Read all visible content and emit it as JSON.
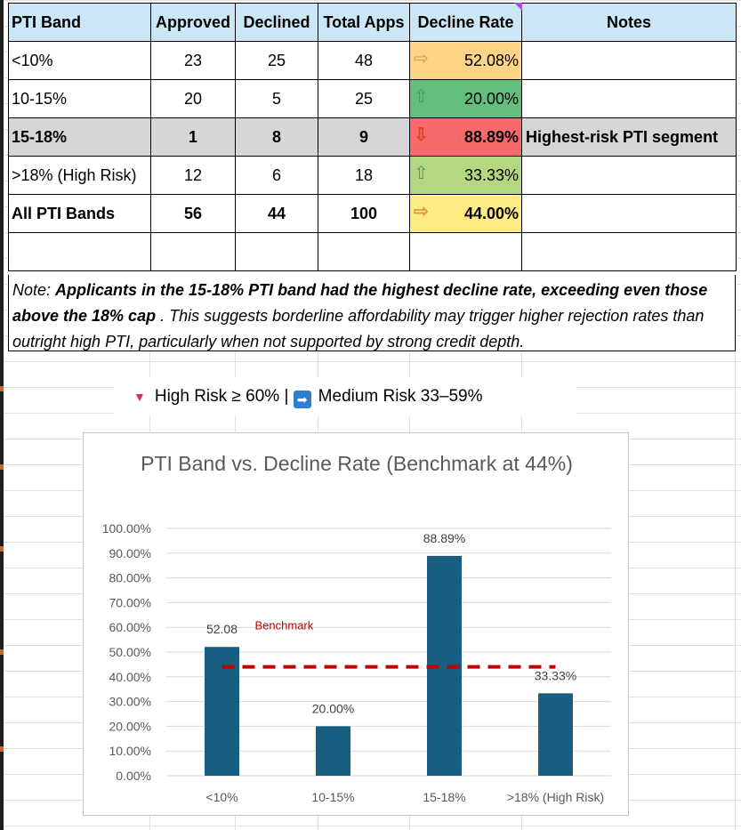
{
  "table": {
    "headers": [
      "PTI Band",
      "Approved",
      "Declined",
      "Total Apps",
      "Decline Rate",
      "Notes"
    ],
    "rows": [
      {
        "band": "<10%",
        "approved": "23",
        "declined": "25",
        "total": "48",
        "rate": "52.08%",
        "arrow": "right",
        "rate_color": "#ffd486",
        "note": ""
      },
      {
        "band": "10-15%",
        "approved": "20",
        "declined": "5",
        "total": "25",
        "rate": "20.00%",
        "arrow": "up",
        "rate_color": "#63be7b",
        "note": ""
      },
      {
        "band": "15-18%",
        "approved": "1",
        "declined": "8",
        "total": "9",
        "rate": "88.89%",
        "arrow": "down",
        "rate_color": "#f8696b",
        "note": "Highest-risk PTI segment"
      },
      {
        "band": ">18% (High Risk)",
        "approved": "12",
        "declined": "6",
        "total": "18",
        "rate": "33.33%",
        "arrow": "up",
        "rate_color": "#b5d77f",
        "note": ""
      },
      {
        "band": "All PTI Bands",
        "approved": "56",
        "declined": "44",
        "total": "100",
        "rate": "44.00%",
        "arrow": "right",
        "rate_color": "#ffeb84",
        "note": ""
      }
    ]
  },
  "note": {
    "prefix": "Note:  ",
    "bold": "Applicants in the 15-18% PTI band had the highest decline rate, exceeding even those above the 18% cap",
    "rest": " . This suggests borderline affordability may trigger higher rejection rates than outright high PTI, particularly when not supported by strong credit depth."
  },
  "legend": {
    "high": "High Risk ≥ 60% |",
    "medium": "Medium Risk 33–59%"
  },
  "colors": {
    "header_bg": "#cbe6f5",
    "bar": "#175e80",
    "benchmark": "#c00000"
  },
  "chart_data": {
    "type": "bar",
    "title": "PTI Band vs. Decline Rate (Benchmark at 44%)",
    "categories": [
      "<10%",
      "10-15%",
      "15-18%",
      ">18% (High Risk)"
    ],
    "values": [
      52.08,
      20.0,
      88.89,
      33.33
    ],
    "data_labels": [
      "52.08",
      "20.00%",
      "88.89%",
      "33.33%"
    ],
    "benchmark": {
      "label": "Benchmark",
      "value": 44
    },
    "ylim": [
      0,
      100
    ],
    "yticks": [
      "0.00%",
      "10.00%",
      "20.00%",
      "30.00%",
      "40.00%",
      "50.00%",
      "60.00%",
      "70.00%",
      "80.00%",
      "90.00%",
      "100.00%"
    ],
    "grid": true,
    "legend": "none"
  }
}
